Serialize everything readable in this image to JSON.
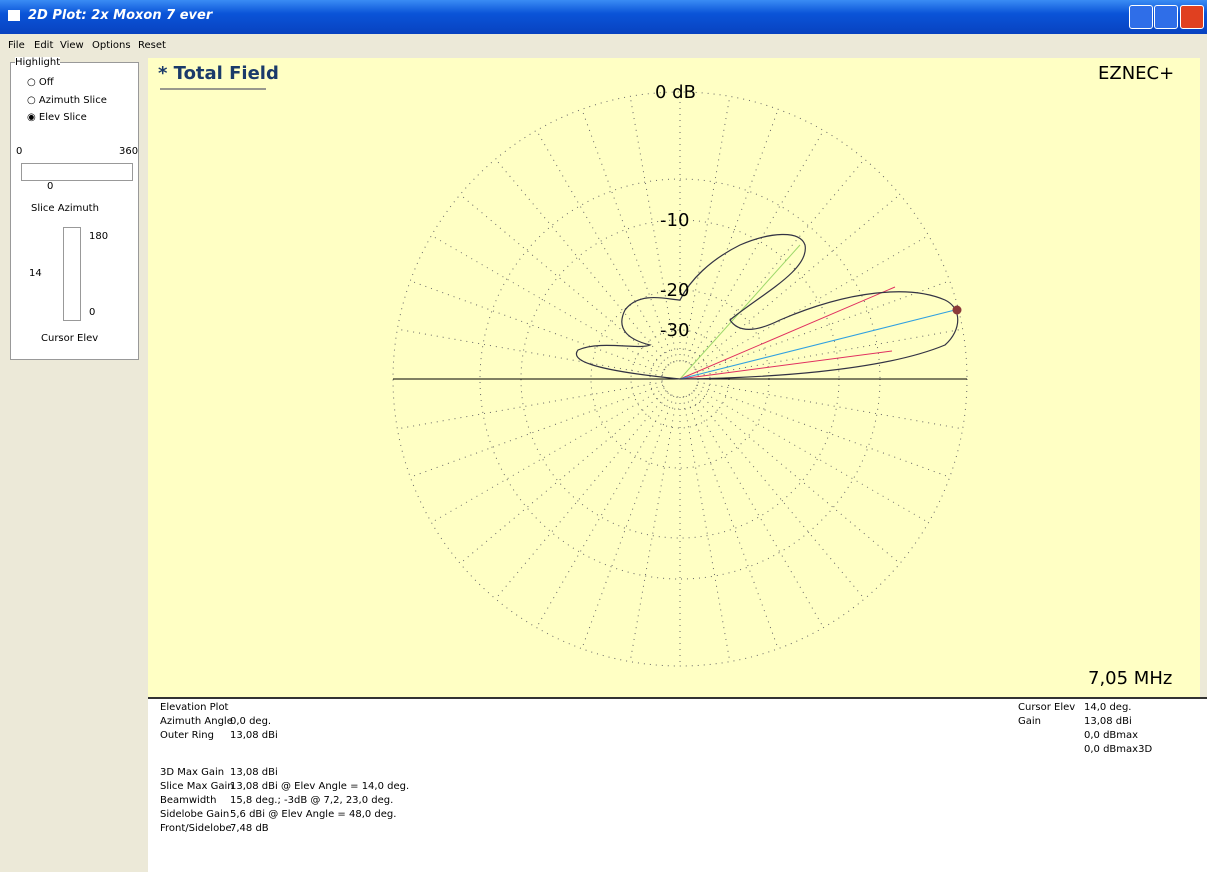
{
  "window": {
    "title": "2D Plot: 2x Moxon 7 ever"
  },
  "menu": [
    "File",
    "Edit",
    "View",
    "Options",
    "Reset"
  ],
  "highlight": {
    "title": "Highlight",
    "options": [
      "Off",
      "Azimuth Slice",
      "Elev Slice"
    ],
    "azimuth": {
      "min": "0",
      "max": "360",
      "value": "0",
      "label": "Slice Azimuth"
    },
    "elev": {
      "max": "180",
      "min": "0",
      "value": "14",
      "label": "Cursor Elev"
    }
  },
  "plot": {
    "title": "* Total Field",
    "brand": "EZNEC+",
    "frequency": "7,05 MHz",
    "ring_labels": [
      "0 dB",
      "-10",
      "-20",
      "-30"
    ]
  },
  "info": {
    "heading": "Elevation Plot",
    "group1": [
      [
        "Azimuth Angle",
        "0,0 deg."
      ],
      [
        "Outer Ring",
        "13,08 dBi"
      ]
    ],
    "group2": [
      [
        "3D Max Gain",
        "13,08 dBi"
      ],
      [
        "Slice Max Gain",
        "13,08 dBi @ Elev Angle = 14,0 deg."
      ],
      [
        "Beamwidth",
        "15,8 deg.; -3dB @ 7,2, 23,0 deg."
      ],
      [
        "Sidelobe Gain",
        "5,6 dBi @ Elev Angle = 48,0 deg."
      ],
      [
        "Front/Sidelobe",
        "7,48 dB"
      ]
    ],
    "right": [
      [
        "Cursor Elev",
        "14,0 deg."
      ],
      [
        "Gain",
        "13,08 dBi"
      ]
    ],
    "right_extra": [
      "0,0 dBmax",
      "0,0 dBmax3D"
    ]
  }
}
